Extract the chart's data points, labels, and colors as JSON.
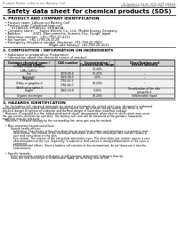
{
  "background_color": "#ffffff",
  "header_left": "Product Name: Lithium Ion Battery Cell",
  "header_right_line1": "Substance Code: SDS-049-00010",
  "header_right_line2": "Established / Revision: Dec.7,2010",
  "title": "Safety data sheet for chemical products (SDS)",
  "section1_title": "1. PRODUCT AND COMPANY IDENTIFICATION",
  "section1_lines": [
    "  • Product name: Lithium Ion Battery Cell",
    "  • Product code: Cylindrical-type cell",
    "         SY186560, SY186562, SY-B-B60A",
    "  • Company name:      Sanyo Electric Co., Ltd., Mobile Energy Company",
    "  • Address:            2001, Kamiyamacho, Sumoto-City, Hyogo, Japan",
    "  • Telephone number:  +81-(799)-20-4111",
    "  • Fax number:  +81-1799-26-4129",
    "  • Emergency telephone number (daytime): +81-799-20-2662",
    "                                              (Night and holiday): +81-799-26-4131"
  ],
  "section2_title": "2. COMPOSITION / INFORMATION ON INGREDIENTS",
  "section2_intro": "  • Substance or preparation: Preparation",
  "section2_sub": "  • Information about the chemical nature of product:",
  "table_header_row1": [
    "Common chemical name /",
    "CAS number",
    "Concentration /",
    "Classification and"
  ],
  "table_header_row2": [
    "Synonym name",
    "",
    "Concentration range",
    "hazard labeling"
  ],
  "table_rows": [
    [
      "Lithium cobalt tantalate",
      "-",
      "30-40%",
      ""
    ],
    [
      "(LiMn-CoTiO₃)",
      "",
      "",
      ""
    ],
    [
      "Iron",
      "7439-89-6",
      "15-25%",
      "-"
    ],
    [
      "Aluminum",
      "7429-90-5",
      "2-6%",
      "-"
    ],
    [
      "Graphite",
      "",
      "10-20%",
      ""
    ],
    [
      "(Flaky or graphite-I)",
      "7782-42-5",
      "",
      "-"
    ],
    [
      "(Artificial graphite-I)",
      "7782-44-0",
      "",
      ""
    ],
    [
      "Copper",
      "7440-50-8",
      "5-15%",
      "Sensitization of the skin"
    ],
    [
      "",
      "",
      "",
      "group No.2"
    ],
    [
      "Organic electrolyte",
      "-",
      "10-20%",
      "Inflammable liquid"
    ]
  ],
  "section3_title": "3. HAZARDS IDENTIFICATION",
  "section3_paras": [
    "   For the battery cell, chemical materials are stored in a hermetically sealed steel case, designed to withstand",
    "temperatures of prescribed-specifications during normal use. As a result, during normal use, there is no",
    "physical danger of ignition or explosion and thermal danger of hazardous materials leakage.",
    "   However, if exposed to a fire, added mechanical shock, decomposed, when electric short-circuit may occur,",
    "the gas insides ventilate be operated. The battery cell case will be breached of fire-portions, hazardous",
    "materials may be released.",
    "   Moreover, if heated strongly by the surrounding fire, smut gas may be emitted.",
    "",
    "   • Most important hazard and effects:",
    "         Human health effects:",
    "            Inhalation: The release of the electrolyte has an anesthesia action and stimulates a respiratory tract.",
    "            Skin contact: The release of the electrolyte stimulates a skin. The electrolyte skin contact causes a",
    "            sore and stimulation on the skin.",
    "            Eye contact: The release of the electrolyte stimulates eyes. The electrolyte eye contact causes a sore",
    "            and stimulation on the eye. Especially, a substance that causes a strong inflammation of the eyes is",
    "            contained.",
    "            Environmental effects: Since a battery cell remains in the environment, do not throw out it into the",
    "            environment.",
    "",
    "   • Specific hazards:",
    "         If the electrolyte contacts with water, it will generate detrimental hydrogen fluoride.",
    "         Since the seal electrolyte is inflammable liquid, do not bring close to fire."
  ]
}
